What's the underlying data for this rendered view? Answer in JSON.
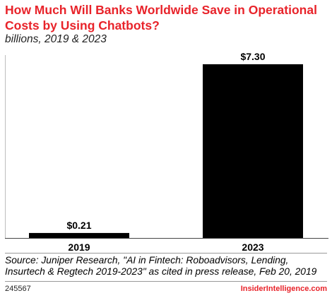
{
  "header": {
    "title": "How Much Will Banks Worldwide Save in Operational Costs by Using Chatbots?",
    "subtitle": "billions, 2019 & 2023"
  },
  "chart_data": {
    "type": "bar",
    "categories": [
      "2019",
      "2023"
    ],
    "values": [
      0.21,
      7.3
    ],
    "value_labels": [
      "$0.21",
      "$7.30"
    ],
    "ylim": [
      0,
      7.3
    ],
    "grid": false,
    "legend": "none",
    "bar_color": "#000000"
  },
  "footer": {
    "source": "Source: Juniper Research, \"AI in Fintech: Roboadvisors, Lending, Insurtech & Regtech 2019-2023\" as cited in press release, Feb 20, 2019",
    "chart_id": "245567",
    "brand": "InsiderIntelligence.com"
  },
  "colors": {
    "accent": "#e8232a",
    "bars": "#000000"
  }
}
